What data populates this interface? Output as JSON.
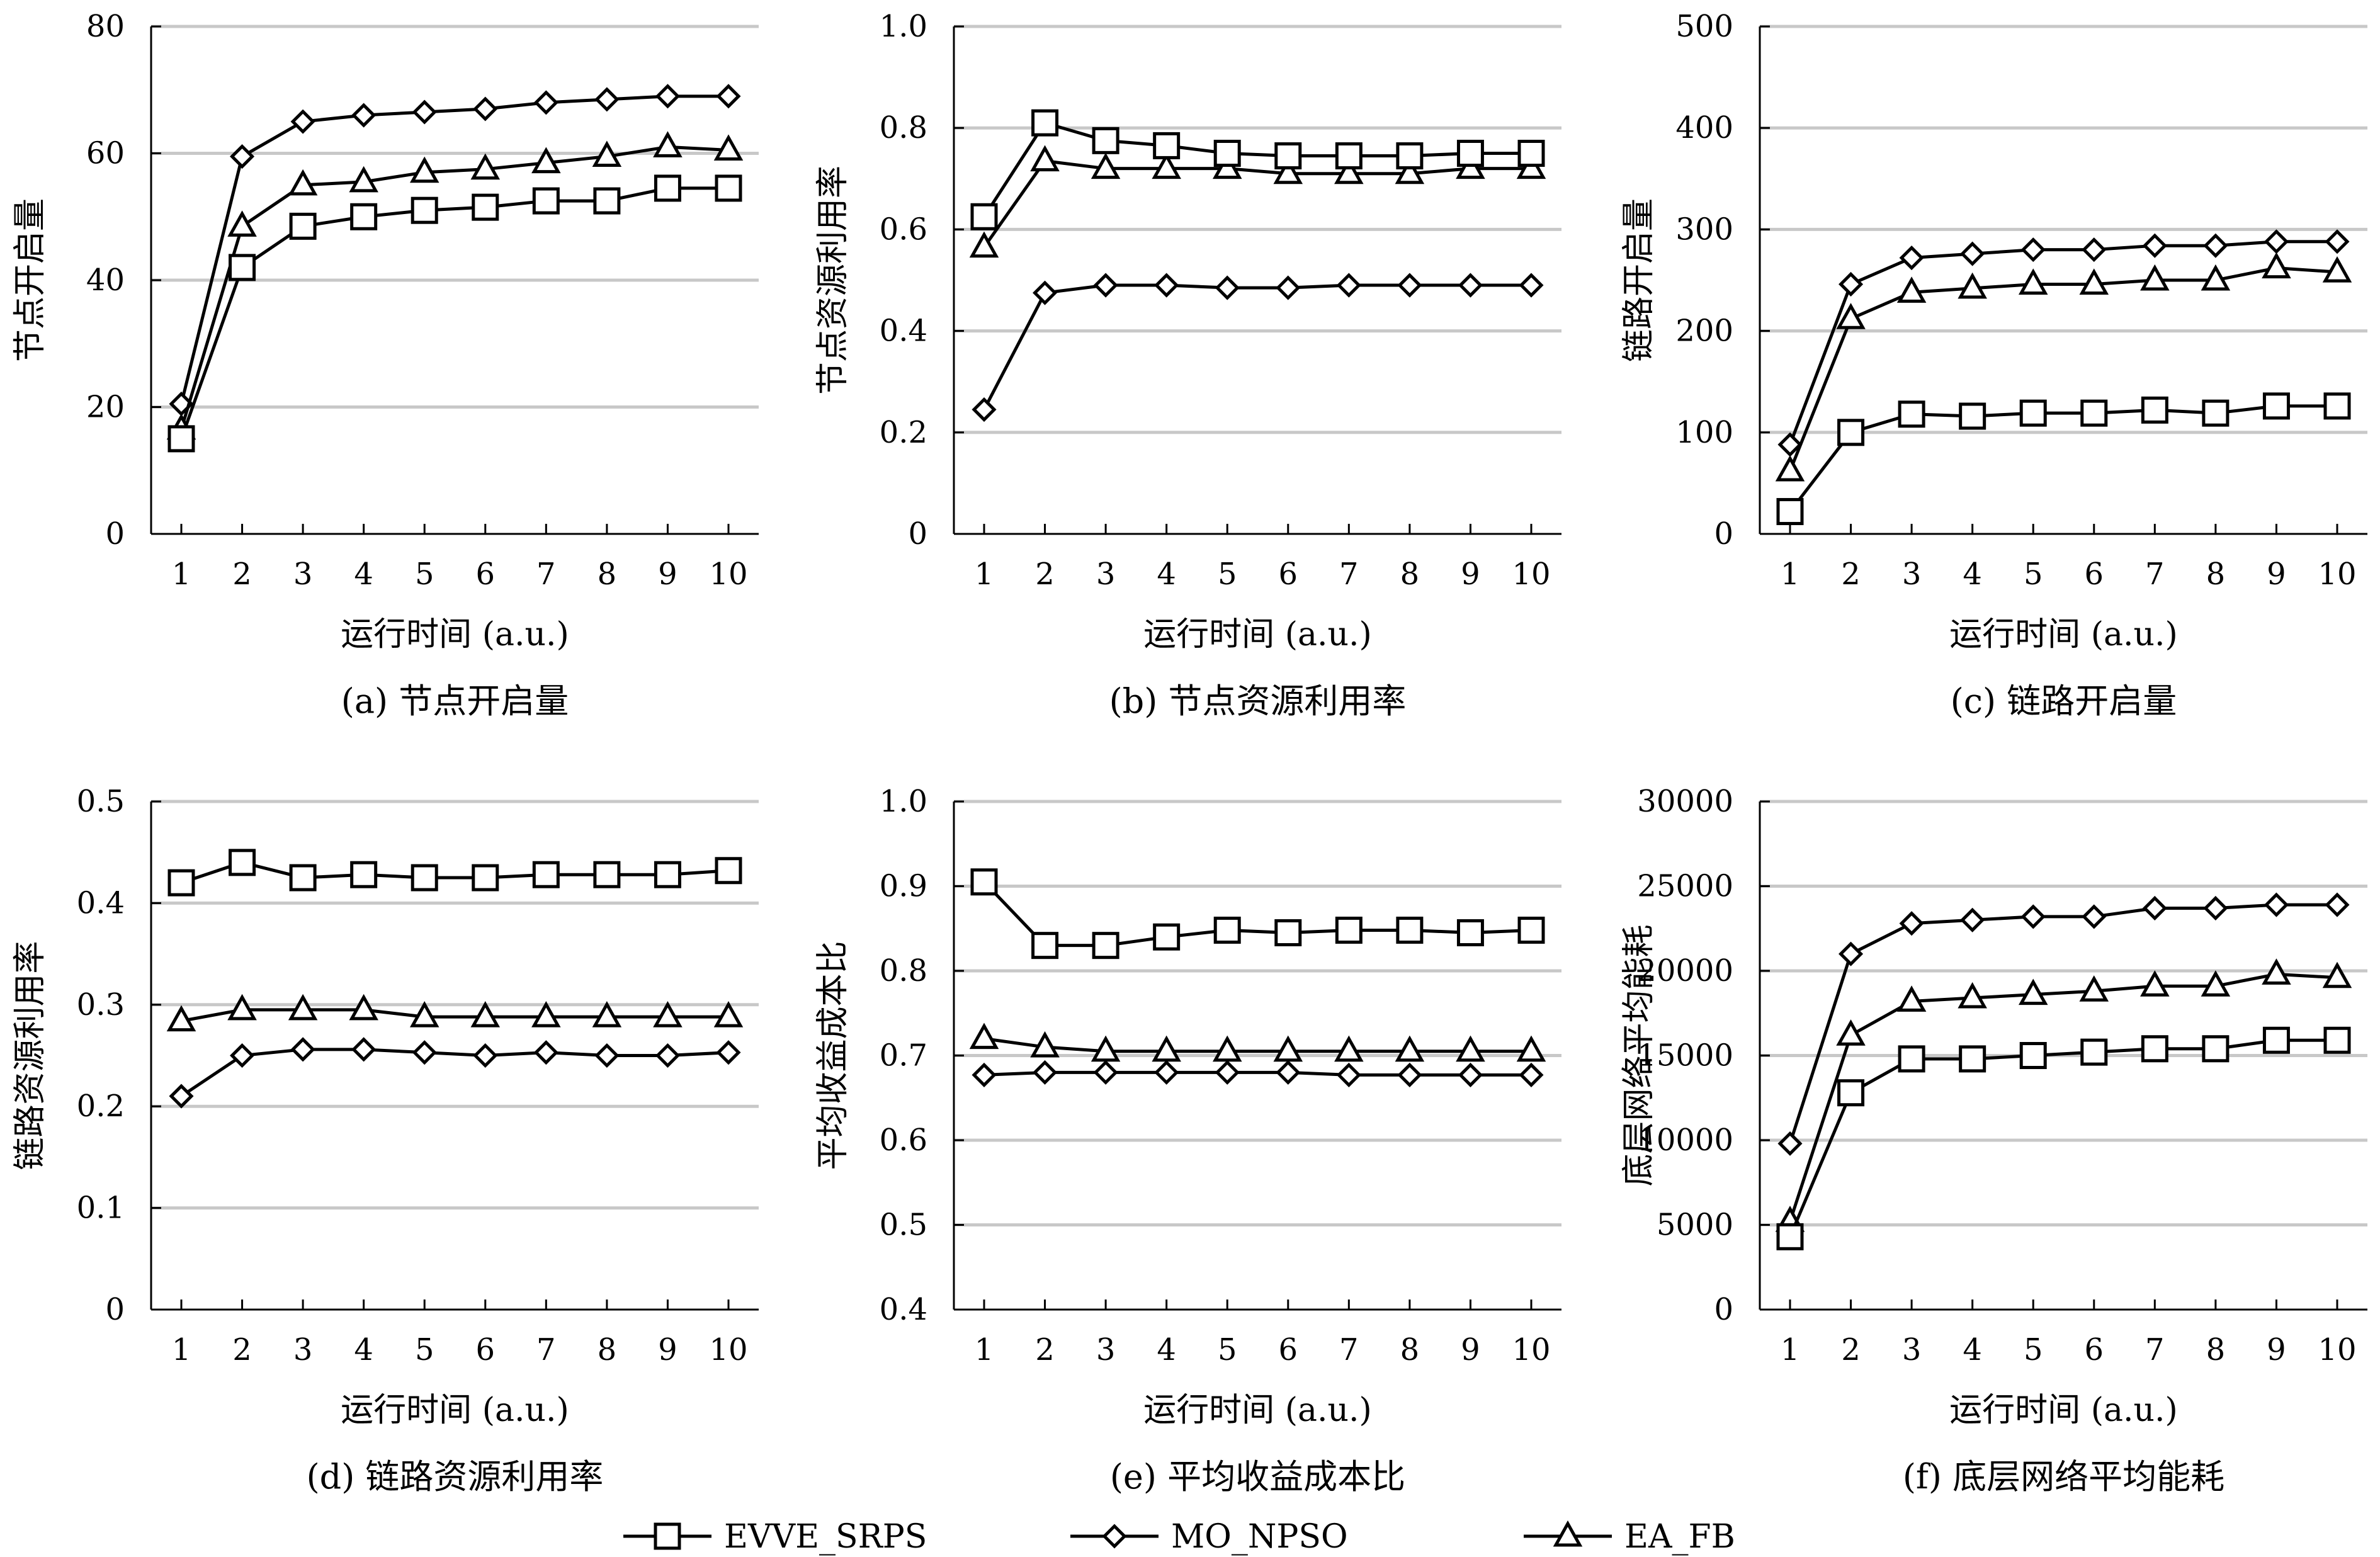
{
  "legend": [
    {
      "name": "EVVE_SRPS",
      "marker": "square"
    },
    {
      "name": "MO_NPSO",
      "marker": "diamond"
    },
    {
      "name": "EA_FB",
      "marker": "triangle"
    }
  ],
  "chart_data": [
    {
      "type": "line",
      "caption": "(a) 节点开启量",
      "xlabel": "运行时间 (a.u.)",
      "ylabel": "节点开启量",
      "x": [
        1,
        2,
        3,
        4,
        5,
        6,
        7,
        8,
        9,
        10
      ],
      "ylim": [
        0,
        80
      ],
      "yticks": [
        "0",
        "20",
        "40",
        "60",
        "80"
      ],
      "yticks_values": [
        0,
        20,
        40,
        60,
        80
      ],
      "series": [
        {
          "name": "EVVE_SRPS",
          "marker": "square",
          "values": [
            15,
            42,
            48.5,
            50,
            51,
            51.5,
            52.5,
            52.5,
            54.5,
            54.5
          ]
        },
        {
          "name": "MO_NPSO",
          "marker": "diamond",
          "values": [
            20.5,
            59.5,
            65,
            66,
            66.5,
            67,
            68,
            68.5,
            69,
            69
          ]
        },
        {
          "name": "EA_FB",
          "marker": "triangle",
          "values": [
            16.5,
            48.5,
            55,
            55.5,
            57,
            57.5,
            58.5,
            59.5,
            61,
            60.5
          ]
        }
      ]
    },
    {
      "type": "line",
      "caption": "(b) 节点资源利用率",
      "xlabel": "运行时间 (a.u.)",
      "ylabel": "节点资源利用率",
      "x": [
        1,
        2,
        3,
        4,
        5,
        6,
        7,
        8,
        9,
        10
      ],
      "ylim": [
        0,
        1.0
      ],
      "yticks": [
        "0",
        "0.2",
        "0.4",
        "0.6",
        "0.8",
        "1.0"
      ],
      "yticks_values": [
        0,
        0.2,
        0.4,
        0.6,
        0.8,
        1.0
      ],
      "series": [
        {
          "name": "EVVE_SRPS",
          "marker": "square",
          "values": [
            0.625,
            0.81,
            0.775,
            0.765,
            0.75,
            0.745,
            0.745,
            0.745,
            0.75,
            0.75
          ]
        },
        {
          "name": "MO_NPSO",
          "marker": "diamond",
          "values": [
            0.245,
            0.475,
            0.49,
            0.49,
            0.485,
            0.485,
            0.49,
            0.49,
            0.49,
            0.49
          ]
        },
        {
          "name": "EA_FB",
          "marker": "triangle",
          "values": [
            0.565,
            0.735,
            0.72,
            0.72,
            0.72,
            0.71,
            0.71,
            0.71,
            0.72,
            0.72
          ]
        }
      ]
    },
    {
      "type": "line",
      "caption": "(c) 链路开启量",
      "xlabel": "运行时间 (a.u.)",
      "ylabel": "链路开启量",
      "x": [
        1,
        2,
        3,
        4,
        5,
        6,
        7,
        8,
        9,
        10
      ],
      "ylim": [
        0,
        500
      ],
      "yticks": [
        "0",
        "100",
        "200",
        "300",
        "400",
        "500"
      ],
      "yticks_values": [
        0,
        100,
        200,
        300,
        400,
        500
      ],
      "series": [
        {
          "name": "EVVE_SRPS",
          "marker": "square",
          "values": [
            22,
            100,
            118,
            116,
            119,
            119,
            122,
            119,
            126,
            126
          ]
        },
        {
          "name": "MO_NPSO",
          "marker": "diamond",
          "values": [
            88,
            246,
            272,
            276,
            280,
            280,
            284,
            284,
            288,
            288
          ]
        },
        {
          "name": "EA_FB",
          "marker": "triangle",
          "values": [
            62,
            212,
            238,
            242,
            246,
            246,
            250,
            250,
            262,
            258
          ]
        }
      ]
    },
    {
      "type": "line",
      "caption": "(d) 链路资源利用率",
      "xlabel": "运行时间 (a.u.)",
      "ylabel": "链路资源利用率",
      "x": [
        1,
        2,
        3,
        4,
        5,
        6,
        7,
        8,
        9,
        10
      ],
      "ylim": [
        0,
        0.5
      ],
      "yticks": [
        "0",
        "0.1",
        "0.2",
        "0.3",
        "0.4",
        "0.5"
      ],
      "yticks_values": [
        0,
        0.1,
        0.2,
        0.3,
        0.4,
        0.5
      ],
      "series": [
        {
          "name": "EVVE_SRPS",
          "marker": "square",
          "values": [
            0.42,
            0.44,
            0.425,
            0.428,
            0.425,
            0.425,
            0.428,
            0.428,
            0.428,
            0.432
          ]
        },
        {
          "name": "MO_NPSO",
          "marker": "diamond",
          "values": [
            0.21,
            0.25,
            0.256,
            0.256,
            0.253,
            0.25,
            0.253,
            0.25,
            0.25,
            0.253
          ]
        },
        {
          "name": "EA_FB",
          "marker": "triangle",
          "values": [
            0.284,
            0.295,
            0.295,
            0.295,
            0.288,
            0.288,
            0.288,
            0.288,
            0.288,
            0.288
          ]
        }
      ]
    },
    {
      "type": "line",
      "caption": "(e) 平均收益成本比",
      "xlabel": "运行时间 (a.u.)",
      "ylabel": "平均收益成本比",
      "x": [
        1,
        2,
        3,
        4,
        5,
        6,
        7,
        8,
        9,
        10
      ],
      "ylim": [
        0.4,
        1.0
      ],
      "yticks": [
        "0.4",
        "0.5",
        "0.6",
        "0.7",
        "0.8",
        "0.9",
        "1.0"
      ],
      "yticks_values": [
        0.4,
        0.5,
        0.6,
        0.7,
        0.8,
        0.9,
        1.0
      ],
      "series": [
        {
          "name": "EVVE_SRPS",
          "marker": "square",
          "values": [
            0.905,
            0.83,
            0.83,
            0.84,
            0.848,
            0.845,
            0.848,
            0.848,
            0.845,
            0.848
          ]
        },
        {
          "name": "MO_NPSO",
          "marker": "diamond",
          "values": [
            0.677,
            0.68,
            0.68,
            0.68,
            0.68,
            0.68,
            0.677,
            0.677,
            0.677,
            0.677
          ]
        },
        {
          "name": "EA_FB",
          "marker": "triangle",
          "values": [
            0.72,
            0.71,
            0.705,
            0.705,
            0.705,
            0.705,
            0.705,
            0.705,
            0.705,
            0.705
          ]
        }
      ]
    },
    {
      "type": "line",
      "caption": "(f) 底层网络平均能耗",
      "xlabel": "运行时间 (a.u.)",
      "ylabel": "底层网络平均能耗",
      "x": [
        1,
        2,
        3,
        4,
        5,
        6,
        7,
        8,
        9,
        10
      ],
      "ylim": [
        0,
        30000
      ],
      "yticks": [
        "0",
        "5000",
        "10000",
        "15000",
        "20000",
        "25000",
        "30000"
      ],
      "yticks_values": [
        0,
        5000,
        10000,
        15000,
        20000,
        25000,
        30000
      ],
      "series": [
        {
          "name": "EVVE_SRPS",
          "marker": "square",
          "values": [
            4300,
            12800,
            14800,
            14800,
            15000,
            15200,
            15400,
            15400,
            15900,
            15900
          ]
        },
        {
          "name": "MO_NPSO",
          "marker": "diamond",
          "values": [
            9800,
            21000,
            22800,
            23000,
            23200,
            23200,
            23700,
            23700,
            23900,
            23900
          ]
        },
        {
          "name": "EA_FB",
          "marker": "triangle",
          "values": [
            5200,
            16200,
            18200,
            18400,
            18600,
            18800,
            19100,
            19100,
            19800,
            19600
          ]
        }
      ]
    }
  ]
}
